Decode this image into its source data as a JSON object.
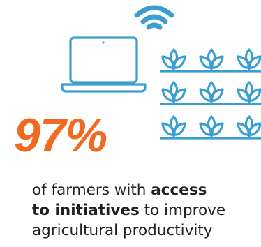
{
  "colors": {
    "blue": "#3a9ed3",
    "orange": "#f06a21",
    "text": "#231f20"
  },
  "icons": [
    "wifi-icon",
    "laptop-icon",
    "wheat-icon"
  ],
  "stat": {
    "value": "97%"
  },
  "caption": {
    "line1_plain": "of farmers with ",
    "line1_bold": "access",
    "line2_bold": "to initiatives",
    "line2_plain": " to improve",
    "line3": "agricultural productivity"
  }
}
